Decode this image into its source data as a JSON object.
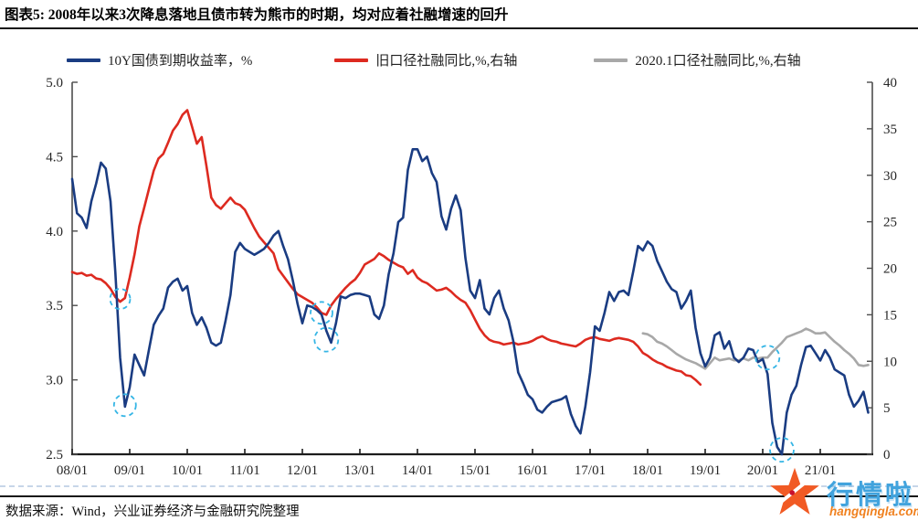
{
  "header": {
    "title": "图表5: 2008年以来3次降息落地且债市转为熊市的时期，均对应着社融增速的回升"
  },
  "source_note": "数据来源：Wind，兴业证券经济与金融研究院整理",
  "watermark": {
    "brand": "行情啦",
    "domain": "hangqingla.com",
    "brand_color": "#41a3dd",
    "accent_color": "#f15a24"
  },
  "chart_data": {
    "type": "line",
    "title": "图表5: 2008年以来3次降息落地且债市转为熊市的时期，均对应着社融增速的回升",
    "grid": false,
    "legend_position": "top",
    "x_axis": {
      "tick_labels": [
        "08/01",
        "09/01",
        "10/01",
        "11/01",
        "12/01",
        "13/01",
        "14/01",
        "15/01",
        "16/01",
        "17/01",
        "18/01",
        "19/01",
        "20/01",
        "21/01"
      ],
      "data_interval": "monthly",
      "start": "2008-01",
      "end": "2021-11"
    },
    "y_left": {
      "range": [
        2.5,
        5.0
      ],
      "ticks": [
        5.0,
        4.5,
        4.0,
        3.5,
        3.0,
        2.5
      ],
      "unit": "%"
    },
    "y_right": {
      "range": [
        0,
        40
      ],
      "ticks": [
        40,
        35,
        30,
        25,
        20,
        15,
        10,
        5,
        0
      ],
      "unit": "%"
    },
    "series": [
      {
        "name": "10Y国债到期收益率，%",
        "axis": "left",
        "color": "#1a3c82",
        "start": "2008-01",
        "start_month_index": 0,
        "values": [
          4.35,
          4.12,
          4.09,
          4.02,
          4.2,
          4.32,
          4.46,
          4.42,
          4.2,
          3.72,
          3.15,
          2.82,
          2.95,
          3.17,
          3.1,
          3.03,
          3.2,
          3.37,
          3.43,
          3.48,
          3.62,
          3.66,
          3.68,
          3.6,
          3.63,
          3.45,
          3.37,
          3.42,
          3.35,
          3.25,
          3.23,
          3.25,
          3.4,
          3.57,
          3.86,
          3.92,
          3.88,
          3.86,
          3.84,
          3.86,
          3.88,
          3.92,
          3.97,
          4.0,
          3.9,
          3.81,
          3.67,
          3.51,
          3.38,
          3.5,
          3.49,
          3.47,
          3.44,
          3.33,
          3.25,
          3.38,
          3.56,
          3.55,
          3.57,
          3.58,
          3.58,
          3.57,
          3.56,
          3.44,
          3.41,
          3.5,
          3.71,
          3.85,
          4.06,
          4.09,
          4.41,
          4.55,
          4.55,
          4.47,
          4.5,
          4.39,
          4.33,
          4.1,
          4.01,
          4.15,
          4.24,
          4.14,
          3.82,
          3.6,
          3.55,
          3.67,
          3.48,
          3.44,
          3.55,
          3.6,
          3.48,
          3.4,
          3.26,
          3.05,
          2.98,
          2.9,
          2.87,
          2.8,
          2.78,
          2.82,
          2.85,
          2.86,
          2.87,
          2.89,
          2.77,
          2.69,
          2.64,
          2.82,
          3.05,
          3.36,
          3.33,
          3.45,
          3.59,
          3.53,
          3.59,
          3.6,
          3.57,
          3.73,
          3.9,
          3.87,
          3.93,
          3.9,
          3.8,
          3.73,
          3.66,
          3.61,
          3.59,
          3.48,
          3.53,
          3.6,
          3.35,
          3.18,
          3.09,
          3.15,
          3.3,
          3.32,
          3.21,
          3.26,
          3.15,
          3.12,
          3.15,
          3.21,
          3.2,
          3.12,
          3.14,
          3.04,
          2.71,
          2.55,
          2.5,
          2.78,
          2.9,
          2.96,
          3.1,
          3.22,
          3.23,
          3.18,
          3.13,
          3.2,
          3.15,
          3.07,
          3.05,
          3.03,
          2.9,
          2.82,
          2.86,
          2.92,
          2.78
        ]
      },
      {
        "name": "旧口径社融同比,%,右轴",
        "axis": "right",
        "color": "#dd2a20",
        "start": "2008-01",
        "start_month_index": 0,
        "values": [
          19.6,
          19.4,
          19.5,
          19.2,
          19.3,
          18.9,
          18.8,
          18.4,
          17.8,
          16.9,
          16.4,
          16.8,
          19.0,
          21.5,
          24.5,
          26.5,
          28.5,
          30.5,
          31.8,
          32.3,
          33.5,
          34.8,
          35.5,
          36.5,
          37.0,
          35.2,
          33.4,
          34.1,
          31.0,
          27.6,
          26.8,
          26.4,
          27.0,
          27.6,
          27.0,
          26.8,
          26.3,
          25.3,
          24.3,
          23.4,
          22.8,
          22.2,
          21.6,
          19.9,
          19.2,
          18.5,
          17.8,
          17.2,
          16.9,
          16.6,
          16.3,
          15.8,
          15.2,
          15.0,
          16.0,
          16.7,
          17.3,
          17.9,
          18.4,
          18.8,
          19.5,
          20.4,
          20.7,
          21.0,
          21.6,
          21.3,
          20.9,
          20.6,
          20.3,
          20.1,
          19.4,
          19.8,
          19.0,
          18.6,
          18.4,
          18.0,
          17.6,
          17.7,
          17.9,
          17.5,
          17.0,
          16.6,
          16.3,
          15.5,
          14.5,
          13.5,
          12.8,
          12.3,
          12.1,
          12.0,
          11.8,
          11.9,
          12.0,
          11.8,
          11.9,
          12.0,
          12.2,
          12.5,
          12.7,
          12.4,
          12.2,
          12.1,
          11.9,
          11.8,
          11.7,
          11.6,
          11.9,
          12.3,
          12.5,
          12.6,
          12.4,
          12.3,
          12.2,
          12.4,
          12.5,
          12.4,
          12.3,
          12.1,
          11.6,
          10.9,
          10.6,
          10.2,
          9.9,
          9.7,
          9.4,
          9.2,
          9.0,
          8.9,
          8.5,
          8.4,
          8.0,
          7.5
        ]
      },
      {
        "name": "2020.1口径社融同比,%,右轴",
        "axis": "right",
        "color": "#a8a8a8",
        "start": "2017-12",
        "start_month_index": 119,
        "values": [
          13.0,
          12.9,
          12.6,
          12.1,
          11.9,
          11.6,
          11.2,
          10.8,
          10.5,
          10.2,
          10.0,
          9.8,
          9.5,
          9.2,
          9.8,
          10.4,
          10.1,
          10.2,
          10.3,
          10.1,
          10.1,
          10.3,
          10.1,
          10.4,
          10.3,
          10.4,
          10.4,
          11.0,
          11.5,
          12.0,
          12.6,
          12.8,
          13.0,
          13.2,
          13.5,
          13.3,
          13.0,
          13.0,
          13.1,
          12.6,
          12.1,
          11.7,
          11.2,
          10.8,
          10.3,
          9.6,
          9.5,
          9.6
        ]
      }
    ],
    "annotations": {
      "highlight_circles_note": "dashed cyan circles marking the 3 rate-cut episodes (2008, 2012, 2020) on yield lows and TSF growth troughs",
      "circle_color": "#35b5e5",
      "circles": [
        {
          "month_index": 10,
          "value": 16.7,
          "axis": "right",
          "r": 11
        },
        {
          "month_index": 11,
          "value": 2.83,
          "axis": "left",
          "r": 12
        },
        {
          "month_index": 52,
          "value": 15.2,
          "axis": "right",
          "r": 12
        },
        {
          "month_index": 53,
          "value": 3.27,
          "axis": "left",
          "r": 13
        },
        {
          "month_index": 145,
          "value": 10.4,
          "axis": "right",
          "r": 13
        },
        {
          "month_index": 148,
          "value": 2.53,
          "axis": "left",
          "r": 13
        }
      ]
    }
  }
}
